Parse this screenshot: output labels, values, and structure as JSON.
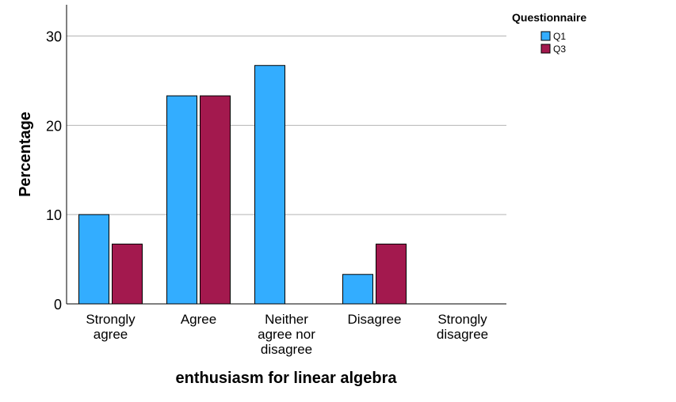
{
  "chart_data": {
    "type": "bar",
    "xlabel": "enthusiasm for linear algebra",
    "ylabel": "Percentage",
    "categories": [
      [
        "Strongly",
        "agree"
      ],
      [
        "Agree"
      ],
      [
        "Neither",
        "agree nor",
        "disagree"
      ],
      [
        "Disagree"
      ],
      [
        "Strongly",
        "disagree"
      ]
    ],
    "series": [
      {
        "name": "Q1",
        "color": "#33adff",
        "values": [
          10.0,
          23.3,
          26.7,
          3.3,
          0
        ]
      },
      {
        "name": "Q3",
        "color": "#a3194e",
        "values": [
          6.7,
          23.3,
          0,
          6.7,
          0
        ]
      }
    ],
    "ylim": [
      0,
      33.5
    ],
    "yticks": [
      0,
      10,
      20,
      30
    ],
    "grid": true,
    "legend": {
      "title": "Questionnaire",
      "placement": "top-right"
    }
  }
}
